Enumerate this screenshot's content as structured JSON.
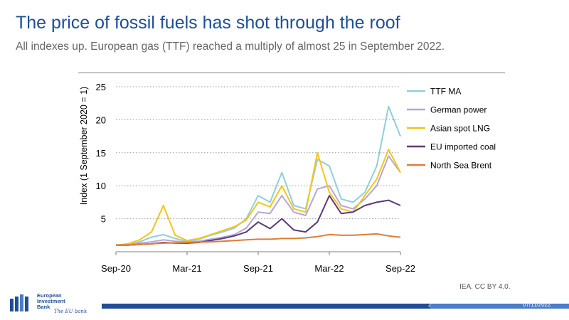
{
  "slide": {
    "title": "The price of fossil fuels has shot through the roof",
    "subtitle": "All indexes up. European gas (TTF) reached a multiply of almost 25 in September 2022.",
    "source": "IEA. CC BY 4.0.",
    "page_number": "2",
    "date": "07/11/2022",
    "logo": {
      "line1": "European",
      "line2": "Investment",
      "line3": "Bank",
      "tagline": "The EU bank"
    }
  },
  "chart_data": {
    "type": "line",
    "title": "",
    "xlabel": "",
    "ylabel": "Index (1 September 2020 = 1)",
    "xlim": [
      0,
      24
    ],
    "ylim": [
      0,
      25
    ],
    "yticks": [
      5,
      10,
      15,
      20,
      25
    ],
    "xticks": [
      {
        "pos": 0,
        "label": "Sep-20"
      },
      {
        "pos": 6,
        "label": "Mar-21"
      },
      {
        "pos": 12,
        "label": "Sep-21"
      },
      {
        "pos": 18,
        "label": "Mar-22"
      },
      {
        "pos": 24,
        "label": "Sep-22"
      }
    ],
    "grid": "horizontal-dotted",
    "legend_position": "right",
    "x": [
      0,
      1,
      2,
      3,
      4,
      5,
      6,
      7,
      8,
      9,
      10,
      11,
      12,
      13,
      14,
      15,
      16,
      17,
      18,
      19,
      20,
      21,
      22,
      23,
      24
    ],
    "series": [
      {
        "name": "TTF MA",
        "color": "#92cddc",
        "values": [
          1.0,
          1.1,
          1.5,
          2.2,
          2.6,
          2.0,
          1.6,
          1.9,
          2.5,
          3.0,
          3.6,
          5.0,
          8.5,
          7.5,
          12.0,
          7.0,
          6.5,
          14.0,
          13.0,
          8.0,
          7.5,
          9.0,
          13.0,
          22.0,
          17.5
        ]
      },
      {
        "name": "German power",
        "color": "#b4a7d6",
        "values": [
          1.0,
          1.1,
          1.3,
          1.5,
          1.8,
          1.6,
          1.5,
          1.6,
          1.9,
          2.2,
          2.6,
          3.6,
          6.0,
          5.8,
          8.5,
          6.0,
          5.5,
          9.5,
          10.0,
          7.0,
          6.5,
          8.0,
          10.0,
          14.5,
          12.0
        ]
      },
      {
        "name": "Asian spot LNG",
        "color": "#f5c518",
        "values": [
          1.0,
          1.2,
          1.8,
          3.0,
          7.0,
          2.5,
          1.7,
          2.0,
          2.6,
          3.2,
          3.8,
          4.8,
          7.5,
          6.8,
          10.0,
          6.5,
          6.0,
          15.0,
          9.0,
          6.5,
          6.0,
          8.5,
          11.0,
          15.5,
          12.0
        ]
      },
      {
        "name": "EU imported coal",
        "color": "#5b3a7a",
        "values": [
          1.0,
          1.0,
          1.1,
          1.2,
          1.4,
          1.3,
          1.3,
          1.4,
          1.7,
          2.0,
          2.4,
          3.0,
          4.5,
          3.5,
          5.0,
          3.3,
          3.0,
          4.5,
          8.5,
          5.8,
          6.0,
          7.0,
          7.5,
          7.8,
          7.0
        ]
      },
      {
        "name": "North Sea Brent",
        "color": "#e07b39",
        "values": [
          1.0,
          1.0,
          1.1,
          1.2,
          1.3,
          1.35,
          1.4,
          1.45,
          1.5,
          1.6,
          1.7,
          1.8,
          1.9,
          1.9,
          2.0,
          2.0,
          2.1,
          2.3,
          2.6,
          2.5,
          2.5,
          2.6,
          2.7,
          2.4,
          2.2
        ]
      }
    ]
  }
}
